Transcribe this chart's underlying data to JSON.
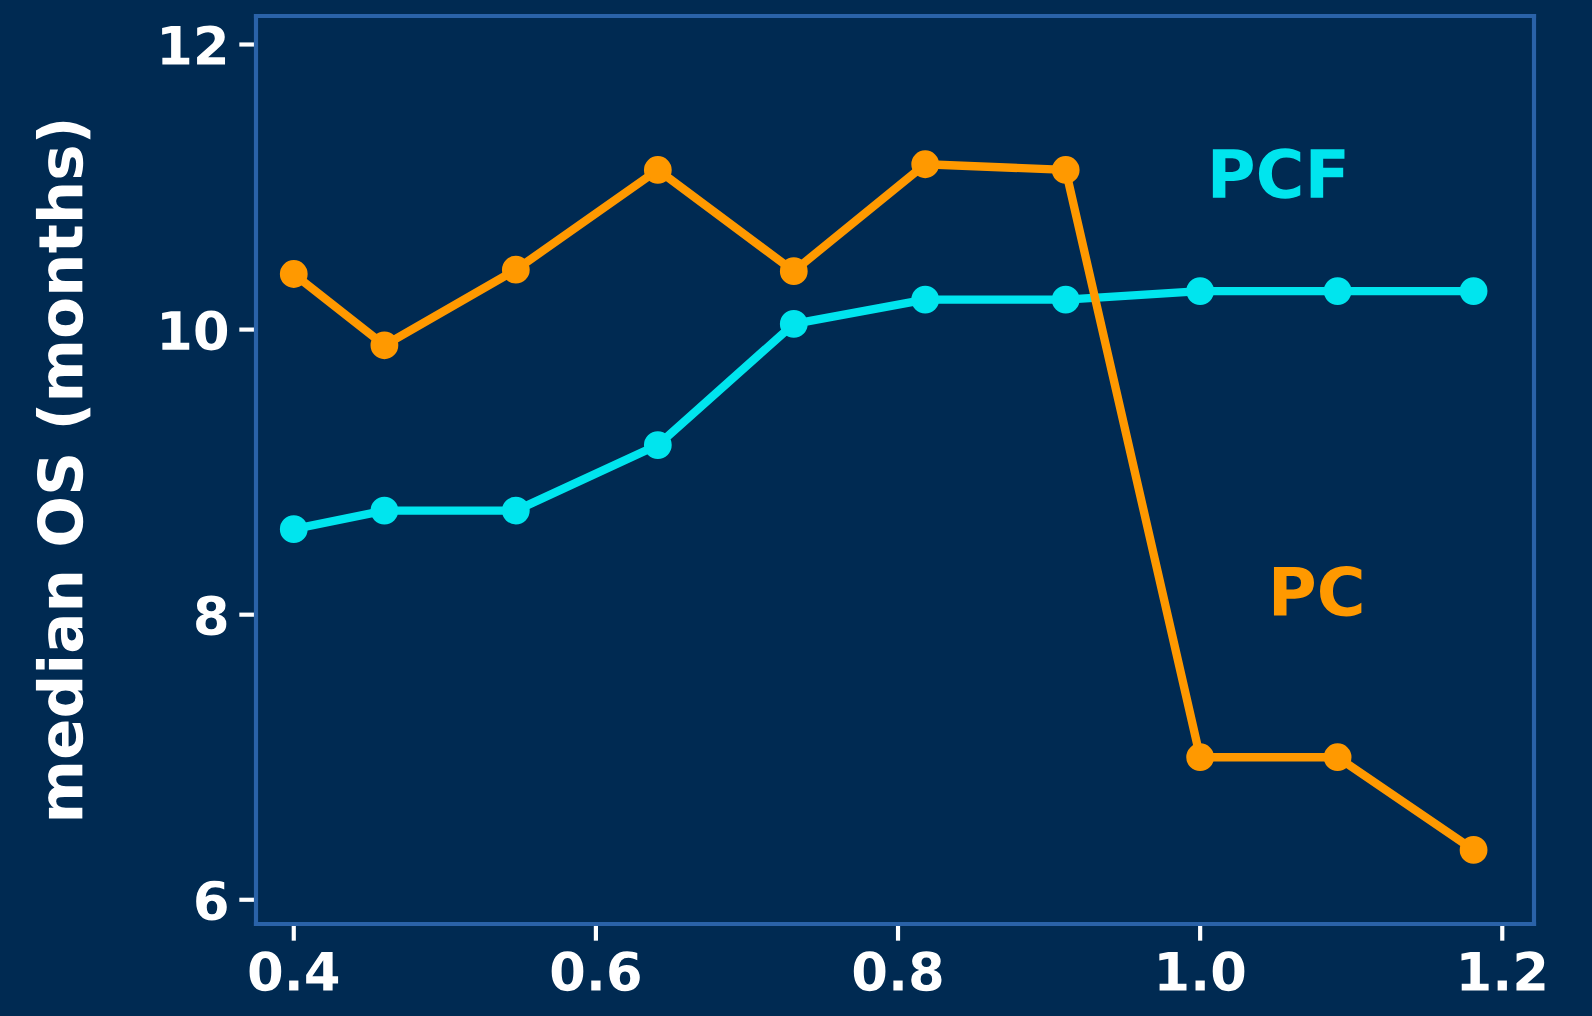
{
  "chart_data": {
    "type": "line",
    "ylabel": "median OS (months)",
    "series": [
      {
        "name": "PCF",
        "color": "#00e5ee",
        "x": [
          0.4,
          0.46,
          0.547,
          0.641,
          0.731,
          0.818,
          0.911,
          1.0,
          1.091,
          1.181
        ],
        "values": [
          8.6,
          8.73,
          8.73,
          9.19,
          10.04,
          10.21,
          10.21,
          10.27,
          10.27,
          10.27
        ]
      },
      {
        "name": "PC",
        "color": "#ff9900",
        "x": [
          0.4,
          0.46,
          0.547,
          0.641,
          0.731,
          0.818,
          0.911,
          1.0,
          1.091,
          1.181
        ],
        "values": [
          10.39,
          9.89,
          10.42,
          11.12,
          10.41,
          11.16,
          11.12,
          7.0,
          7.0,
          6.35
        ]
      }
    ],
    "xlim": [
      0.375,
      1.221
    ],
    "ylim": [
      5.83,
      12.2
    ],
    "xticks": [
      {
        "value": 0.4,
        "label": "0.4"
      },
      {
        "value": 0.6,
        "label": "0.6"
      },
      {
        "value": 0.8,
        "label": "0.8"
      },
      {
        "value": 1.0,
        "label": "1.0"
      },
      {
        "value": 1.2,
        "label": "1.2"
      }
    ],
    "yticks": [
      6,
      8,
      10,
      12
    ],
    "marker": "circle",
    "line_style": "solid",
    "grid": false,
    "legend": false
  }
}
